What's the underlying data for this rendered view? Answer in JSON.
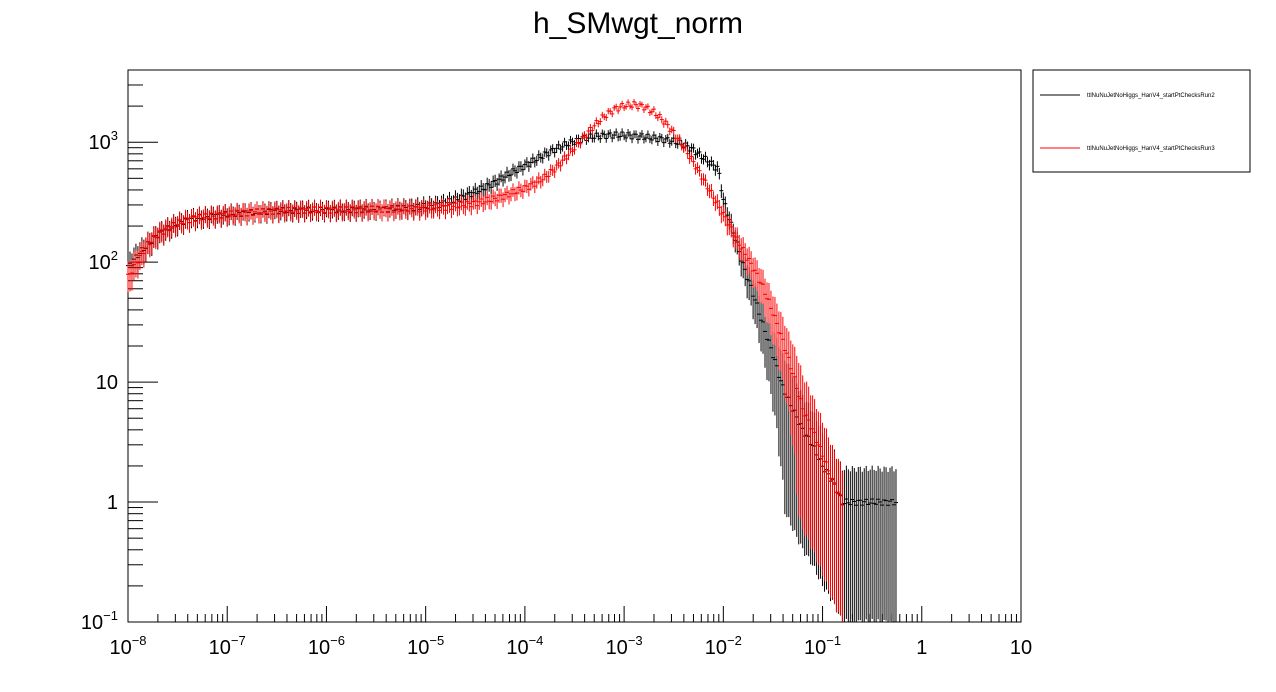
{
  "chart_data": {
    "type": "scatter",
    "title": "h_SMwgt_norm",
    "xlabel": "",
    "ylabel": "",
    "xscale": "log",
    "yscale": "log",
    "xlim": [
      1e-08,
      10
    ],
    "ylim": [
      0.1,
      4000
    ],
    "grid": false,
    "legend_position": "right",
    "x_ticks": [
      {
        "base": "10",
        "exp": "−8"
      },
      {
        "base": "10",
        "exp": "−7"
      },
      {
        "base": "10",
        "exp": "−6"
      },
      {
        "base": "10",
        "exp": "−5"
      },
      {
        "base": "10",
        "exp": "−4"
      },
      {
        "base": "10",
        "exp": "−3"
      },
      {
        "base": "10",
        "exp": "−2"
      },
      {
        "base": "10",
        "exp": "−1"
      },
      {
        "base": "1",
        "exp": ""
      },
      {
        "base": "10",
        "exp": ""
      }
    ],
    "y_ticks": [
      {
        "base": "10",
        "exp": "−1"
      },
      {
        "base": "1",
        "exp": ""
      },
      {
        "base": "10",
        "exp": ""
      },
      {
        "base": "10",
        "exp": "2"
      },
      {
        "base": "10",
        "exp": "3"
      }
    ],
    "series": [
      {
        "name": "ttlNuNuJetNoHiggs_HanV4_startPtChecksRun2",
        "color": "#000000",
        "points": [
          [
            -8.0,
            90
          ],
          [
            -7.9,
            115
          ],
          [
            -7.8,
            140
          ],
          [
            -7.7,
            170
          ],
          [
            -7.6,
            190
          ],
          [
            -7.5,
            210
          ],
          [
            -7.4,
            225
          ],
          [
            -7.3,
            235
          ],
          [
            -7.2,
            240
          ],
          [
            -7.1,
            245
          ],
          [
            -7.0,
            250
          ],
          [
            -6.9,
            255
          ],
          [
            -6.8,
            258
          ],
          [
            -6.7,
            262
          ],
          [
            -6.6,
            265
          ],
          [
            -6.5,
            268
          ],
          [
            -6.4,
            270
          ],
          [
            -6.3,
            270
          ],
          [
            -6.2,
            272
          ],
          [
            -6.1,
            272
          ],
          [
            -6.0,
            272
          ],
          [
            -5.9,
            273
          ],
          [
            -5.8,
            273
          ],
          [
            -5.7,
            275
          ],
          [
            -5.6,
            276
          ],
          [
            -5.5,
            277
          ],
          [
            -5.4,
            278
          ],
          [
            -5.3,
            280
          ],
          [
            -5.2,
            283
          ],
          [
            -5.1,
            287
          ],
          [
            -5.0,
            292
          ],
          [
            -4.9,
            300
          ],
          [
            -4.8,
            312
          ],
          [
            -4.7,
            330
          ],
          [
            -4.6,
            355
          ],
          [
            -4.5,
            385
          ],
          [
            -4.4,
            420
          ],
          [
            -4.3,
            465
          ],
          [
            -4.2,
            520
          ],
          [
            -4.1,
            580
          ],
          [
            -4.0,
            640
          ],
          [
            -3.9,
            710
          ],
          [
            -3.8,
            790
          ],
          [
            -3.7,
            870
          ],
          [
            -3.6,
            950
          ],
          [
            -3.5,
            1020
          ],
          [
            -3.4,
            1080
          ],
          [
            -3.3,
            1120
          ],
          [
            -3.2,
            1140
          ],
          [
            -3.1,
            1150
          ],
          [
            -3.0,
            1145
          ],
          [
            -2.9,
            1130
          ],
          [
            -2.8,
            1110
          ],
          [
            -2.7,
            1085
          ],
          [
            -2.6,
            1055
          ],
          [
            -2.5,
            1020
          ],
          [
            -2.4,
            960
          ],
          [
            -2.3,
            860
          ],
          [
            -2.2,
            740
          ],
          [
            -2.1,
            640
          ],
          [
            -2.05,
            600
          ],
          [
            -2.0,
            330
          ],
          [
            -1.9,
            180
          ],
          [
            -1.8,
            95
          ],
          [
            -1.7,
            55
          ],
          [
            -1.6,
            30
          ],
          [
            -1.5,
            17
          ],
          [
            -1.4,
            9
          ],
          [
            -1.3,
            6
          ],
          [
            -1.2,
            4
          ],
          [
            -1.1,
            3
          ],
          [
            -1.0,
            2
          ],
          [
            -0.9,
            1.5
          ],
          [
            -0.8,
            1
          ],
          [
            -0.7,
            1
          ],
          [
            -0.6,
            1
          ],
          [
            -0.3,
            1
          ],
          [
            -0.25,
            1
          ]
        ]
      },
      {
        "name": "ttlNuNuJetNoHiggs_HanV4_startPtChecksRun3",
        "color": "#ff0000",
        "points": [
          [
            -8.0,
            75
          ],
          [
            -7.9,
            105
          ],
          [
            -7.8,
            140
          ],
          [
            -7.7,
            170
          ],
          [
            -7.6,
            190
          ],
          [
            -7.5,
            210
          ],
          [
            -7.4,
            225
          ],
          [
            -7.3,
            235
          ],
          [
            -7.2,
            240
          ],
          [
            -7.1,
            245
          ],
          [
            -7.0,
            250
          ],
          [
            -6.9,
            255
          ],
          [
            -6.8,
            258
          ],
          [
            -6.7,
            262
          ],
          [
            -6.6,
            265
          ],
          [
            -6.5,
            268
          ],
          [
            -6.4,
            270
          ],
          [
            -6.3,
            270
          ],
          [
            -6.2,
            272
          ],
          [
            -6.1,
            272
          ],
          [
            -6.0,
            272
          ],
          [
            -5.9,
            273
          ],
          [
            -5.8,
            273
          ],
          [
            -5.7,
            274
          ],
          [
            -5.6,
            275
          ],
          [
            -5.5,
            276
          ],
          [
            -5.4,
            276
          ],
          [
            -5.3,
            277
          ],
          [
            -5.2,
            278
          ],
          [
            -5.1,
            279
          ],
          [
            -5.0,
            281
          ],
          [
            -4.9,
            284
          ],
          [
            -4.8,
            288
          ],
          [
            -4.7,
            294
          ],
          [
            -4.6,
            302
          ],
          [
            -4.5,
            312
          ],
          [
            -4.4,
            324
          ],
          [
            -4.3,
            340
          ],
          [
            -4.2,
            360
          ],
          [
            -4.1,
            385
          ],
          [
            -4.0,
            415
          ],
          [
            -3.9,
            455
          ],
          [
            -3.8,
            510
          ],
          [
            -3.7,
            600
          ],
          [
            -3.6,
            730
          ],
          [
            -3.5,
            900
          ],
          [
            -3.4,
            1120
          ],
          [
            -3.3,
            1380
          ],
          [
            -3.2,
            1650
          ],
          [
            -3.1,
            1880
          ],
          [
            -3.0,
            2020
          ],
          [
            -2.9,
            2060
          ],
          [
            -2.8,
            1980
          ],
          [
            -2.7,
            1780
          ],
          [
            -2.6,
            1500
          ],
          [
            -2.5,
            1200
          ],
          [
            -2.4,
            920
          ],
          [
            -2.3,
            680
          ],
          [
            -2.2,
            490
          ],
          [
            -2.1,
            350
          ],
          [
            -2.0,
            250
          ],
          [
            -1.9,
            175
          ],
          [
            -1.8,
            125
          ],
          [
            -1.7,
            90
          ],
          [
            -1.6,
            62
          ],
          [
            -1.5,
            38
          ],
          [
            -1.4,
            22
          ],
          [
            -1.3,
            12
          ],
          [
            -1.2,
            6
          ],
          [
            -1.1,
            4
          ],
          [
            -1.0,
            2.5
          ],
          [
            -0.9,
            1.5
          ],
          [
            -0.8,
            1
          ]
        ]
      }
    ]
  }
}
